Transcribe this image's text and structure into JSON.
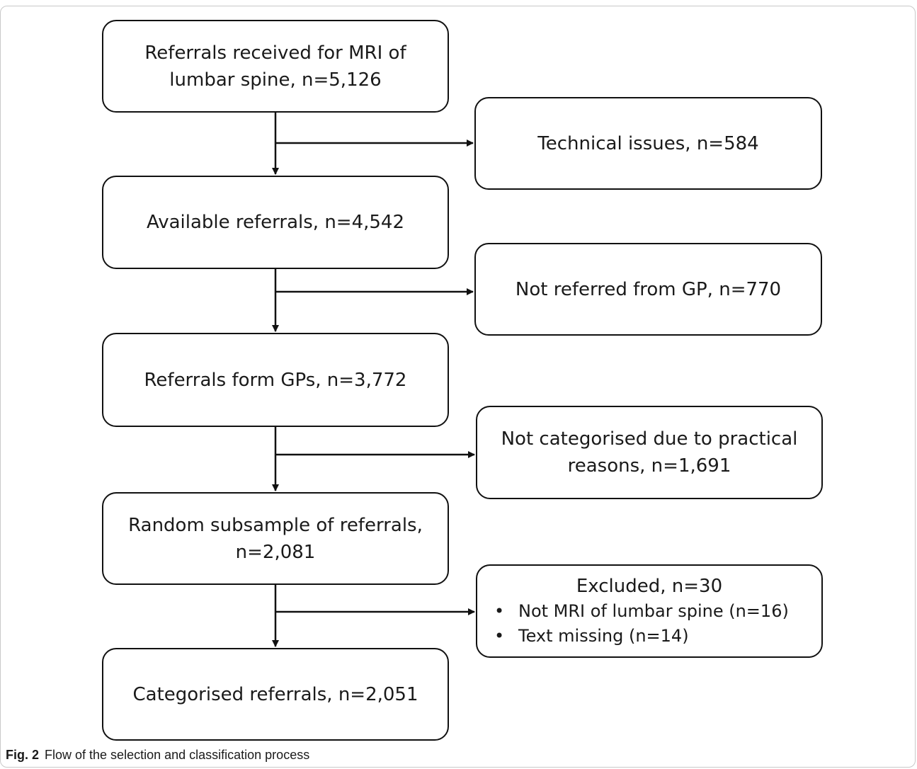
{
  "boxes": {
    "referrals_received": "Referrals received for MRI of lumbar spine, n=5,126",
    "technical_issues": "Technical issues, n=584",
    "available_referrals": "Available referrals, n=4,542",
    "not_referred_gp": "Not referred from GP, n=770",
    "referrals_from_gps": "Referrals form GPs, n=3,772",
    "not_categorised": "Not categorised due to practical reasons, n=1,691",
    "random_subsample": "Random subsample of referrals, n=2,081",
    "excluded": {
      "title": "Excluded, n=30",
      "items": [
        "Not MRI of lumbar spine (n=16)",
        "Text missing (n=14)"
      ]
    },
    "categorised": "Categorised referrals, n=2,051"
  },
  "caption": {
    "label": "Fig. 2",
    "text": "Flow of the selection and classification process"
  }
}
